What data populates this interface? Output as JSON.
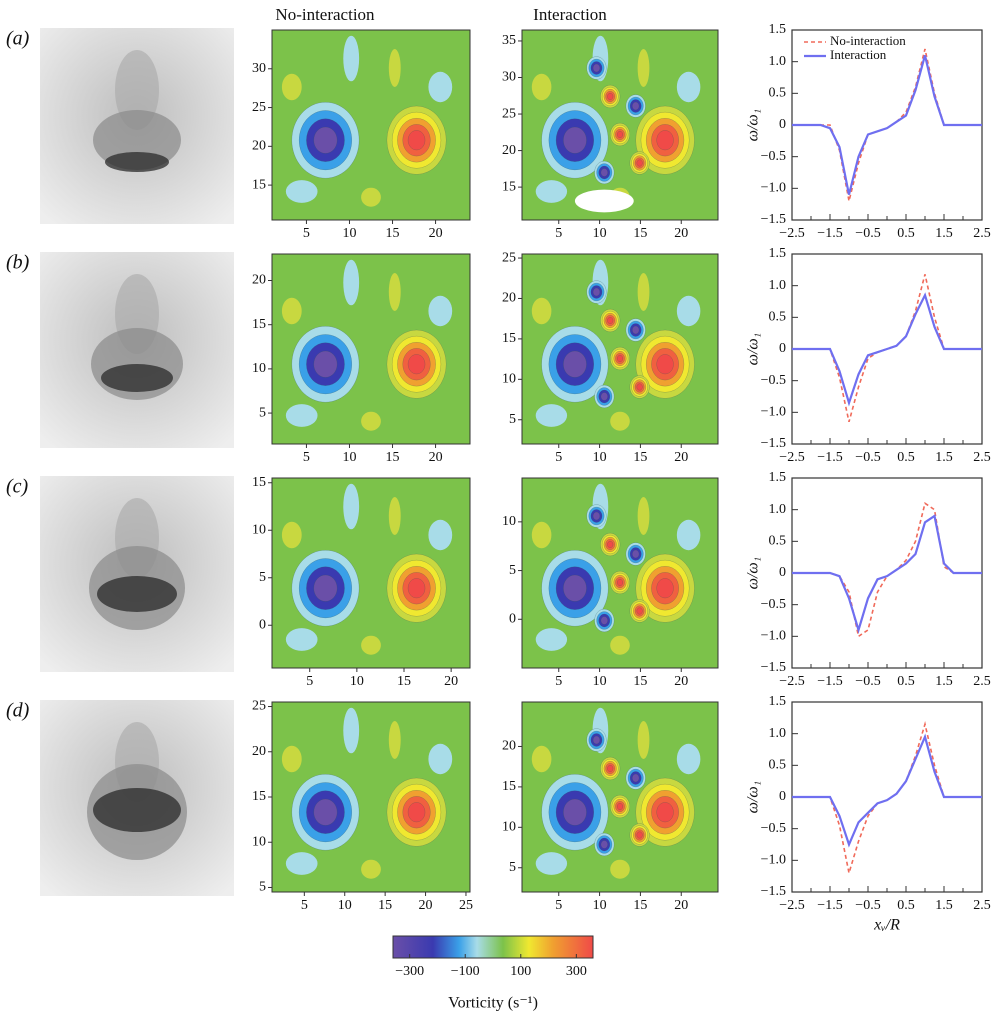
{
  "column_titles": [
    "No-interaction",
    "Interaction"
  ],
  "panel_labels": [
    "(a)",
    "(b)",
    "(c)",
    "(d)"
  ],
  "colorbar": {
    "label": "Vorticity (s⁻¹)",
    "lim": [
      -360,
      360
    ],
    "ticks": [
      {
        "value": -300,
        "label": "−300"
      },
      {
        "value": -100,
        "label": "−100"
      },
      100,
      300
    ]
  },
  "chart_data": [
    {
      "type": "contour",
      "xlim": [
        1,
        24
      ],
      "ylim": [
        10.5,
        35
      ],
      "xticks": [
        5,
        10,
        15,
        20
      ],
      "yticks": [
        15,
        20,
        25,
        30
      ]
    },
    {
      "type": "contour",
      "xlim": [
        0.5,
        24.5
      ],
      "ylim": [
        10.5,
        36.5
      ],
      "xticks": [
        5,
        10,
        15,
        20
      ],
      "yticks": [
        15,
        20,
        25,
        30,
        35
      ]
    },
    {
      "type": "line",
      "ylabel": "ω/ω₁",
      "xlim": [
        -2.5,
        2.5
      ],
      "ylim": [
        -1.5,
        1.5
      ],
      "xticks": [
        {
          "value": -2.5,
          "label": "−2.5"
        },
        {
          "value": -1.5,
          "label": "−1.5"
        },
        {
          "value": -0.5,
          "label": "−0.5"
        },
        0.5,
        1.5,
        2.5
      ],
      "yticks": [
        {
          "value": -1.5,
          "label": "−1.5"
        },
        {
          "value": -1,
          "label": "−1.0"
        },
        {
          "value": -0.5,
          "label": "−0.5"
        },
        0,
        0.5,
        {
          "value": 1,
          "label": "1.0"
        },
        1.5
      ],
      "x": [
        -2.5,
        -2.25,
        -2,
        -1.75,
        -1.5,
        -1.25,
        -1,
        -0.75,
        -0.5,
        -0.25,
        0,
        0.25,
        0.5,
        0.75,
        1,
        1.25,
        1.5,
        1.75,
        2,
        2.25,
        2.5
      ],
      "series": [
        {
          "name": "No-interaction",
          "color": "#f06a5a",
          "dashed": true,
          "values": [
            0,
            0,
            0,
            0,
            0,
            -0.4,
            -1.2,
            -0.6,
            -0.15,
            -0.1,
            -0.05,
            0.05,
            0.2,
            0.6,
            1.2,
            0.5,
            0,
            0,
            0,
            0,
            0
          ]
        },
        {
          "name": "Interaction",
          "color": "#6f6ff0",
          "dashed": false,
          "values": [
            0,
            0,
            0,
            0,
            -0.05,
            -0.35,
            -1.1,
            -0.5,
            -0.15,
            -0.1,
            -0.05,
            0.05,
            0.15,
            0.55,
            1.1,
            0.45,
            0,
            0,
            0,
            0,
            0
          ]
        }
      ]
    },
    {
      "type": "contour",
      "xlim": [
        1,
        24
      ],
      "ylim": [
        1.5,
        23
      ],
      "xticks": [
        5,
        10,
        15,
        20
      ],
      "yticks": [
        5,
        10,
        15,
        20
      ]
    },
    {
      "type": "contour",
      "xlim": [
        0.5,
        24.5
      ],
      "ylim": [
        2,
        25.5
      ],
      "xticks": [
        5,
        10,
        15,
        20
      ],
      "yticks": [
        5,
        10,
        15,
        20,
        25
      ]
    },
    {
      "type": "line",
      "ylabel": "ω/ω₁",
      "xlim": [
        -2.5,
        2.5
      ],
      "ylim": [
        -1.5,
        1.5
      ],
      "xticks": [
        {
          "value": -2.5,
          "label": "−2.5"
        },
        {
          "value": -1.5,
          "label": "−1.5"
        },
        {
          "value": -0.5,
          "label": "−0.5"
        },
        0.5,
        1.5,
        2.5
      ],
      "yticks": [
        {
          "value": -1.5,
          "label": "−1.5"
        },
        {
          "value": -1,
          "label": "−1.0"
        },
        {
          "value": -0.5,
          "label": "−0.5"
        },
        0,
        0.5,
        {
          "value": 1,
          "label": "1.0"
        },
        1.5
      ],
      "x": [
        -2.5,
        -2.25,
        -2,
        -1.75,
        -1.5,
        -1.25,
        -1,
        -0.75,
        -0.5,
        -0.25,
        0,
        0.25,
        0.5,
        0.75,
        1,
        1.25,
        1.5,
        1.75,
        2,
        2.25,
        2.5
      ],
      "series": [
        {
          "color": "#f06a5a",
          "dashed": true,
          "values": [
            0,
            0,
            0,
            0,
            0,
            -0.45,
            -1.15,
            -0.6,
            -0.15,
            -0.05,
            0,
            0.05,
            0.2,
            0.6,
            1.18,
            0.5,
            0,
            0,
            0,
            0,
            0
          ]
        },
        {
          "color": "#6f6ff0",
          "dashed": false,
          "values": [
            0,
            0,
            0,
            0,
            0,
            -0.35,
            -0.85,
            -0.4,
            -0.1,
            -0.05,
            0,
            0.05,
            0.2,
            0.55,
            0.85,
            0.35,
            0,
            0,
            0,
            0,
            0
          ]
        }
      ]
    },
    {
      "type": "contour",
      "xlim": [
        1,
        22
      ],
      "ylim": [
        -4.5,
        15.5
      ],
      "xticks": [
        5,
        10,
        15,
        20
      ],
      "yticks": [
        0,
        5,
        10,
        15
      ]
    },
    {
      "type": "contour",
      "xlim": [
        0.5,
        24.5
      ],
      "ylim": [
        -5,
        14.5
      ],
      "xticks": [
        5,
        10,
        15,
        20
      ],
      "yticks": [
        0,
        5,
        10
      ]
    },
    {
      "type": "line",
      "ylabel": "ω/ω₁",
      "xlim": [
        -2.5,
        2.5
      ],
      "ylim": [
        -1.5,
        1.5
      ],
      "xticks": [
        {
          "value": -2.5,
          "label": "−2.5"
        },
        {
          "value": -1.5,
          "label": "−1.5"
        },
        {
          "value": -0.5,
          "label": "−0.5"
        },
        0.5,
        1.5,
        2.5
      ],
      "yticks": [
        {
          "value": -1.5,
          "label": "−1.5"
        },
        {
          "value": -1,
          "label": "−1.0"
        },
        {
          "value": -0.5,
          "label": "−0.5"
        },
        0,
        0.5,
        {
          "value": 1,
          "label": "1.0"
        },
        1.5
      ],
      "x": [
        -2.5,
        -2.25,
        -2,
        -1.75,
        -1.5,
        -1.25,
        -1,
        -0.75,
        -0.5,
        -0.25,
        0,
        0.25,
        0.5,
        0.75,
        1,
        1.25,
        1.5,
        1.75,
        2,
        2.25,
        2.5
      ],
      "series": [
        {
          "color": "#f06a5a",
          "dashed": true,
          "values": [
            0,
            0,
            0,
            0,
            0,
            -0.05,
            -0.3,
            -1.0,
            -0.9,
            -0.3,
            -0.05,
            0.05,
            0.2,
            0.5,
            1.1,
            1.0,
            0.1,
            0,
            0,
            0,
            0
          ]
        },
        {
          "color": "#6f6ff0",
          "dashed": false,
          "values": [
            0,
            0,
            0,
            0,
            0,
            -0.05,
            -0.4,
            -0.9,
            -0.4,
            -0.1,
            -0.05,
            0.05,
            0.15,
            0.3,
            0.8,
            0.9,
            0.15,
            0,
            0,
            0,
            0
          ]
        }
      ]
    },
    {
      "type": "contour",
      "xlim": [
        1,
        25.5
      ],
      "ylim": [
        4.5,
        25.5
      ],
      "xticks": [
        5,
        10,
        15,
        20,
        25
      ],
      "yticks": [
        5,
        10,
        15,
        20,
        25
      ]
    },
    {
      "type": "contour",
      "xlim": [
        0.5,
        24.5
      ],
      "ylim": [
        2,
        25.5
      ],
      "xticks": [
        5,
        10,
        15,
        20
      ],
      "yticks": [
        5,
        10,
        15,
        20
      ]
    },
    {
      "type": "line",
      "ylabel": "ω/ω₁",
      "xlabel": "xᵥ/R",
      "xlim": [
        -2.5,
        2.5
      ],
      "ylim": [
        -1.5,
        1.5
      ],
      "xticks": [
        {
          "value": -2.5,
          "label": "−2.5"
        },
        {
          "value": -1.5,
          "label": "−1.5"
        },
        {
          "value": -0.5,
          "label": "−0.5"
        },
        0.5,
        1.5,
        2.5
      ],
      "yticks": [
        {
          "value": -1.5,
          "label": "−1.5"
        },
        {
          "value": -1,
          "label": "−1.0"
        },
        {
          "value": -0.5,
          "label": "−0.5"
        },
        0,
        0.5,
        {
          "value": 1,
          "label": "1.0"
        },
        1.5
      ],
      "x": [
        -2.5,
        -2.25,
        -2,
        -1.75,
        -1.5,
        -1.25,
        -1,
        -0.75,
        -0.5,
        -0.25,
        0,
        0.25,
        0.5,
        0.75,
        1,
        1.25,
        1.5,
        1.75,
        2,
        2.25,
        2.5
      ],
      "series": [
        {
          "color": "#f06a5a",
          "dashed": true,
          "values": [
            0,
            0,
            0,
            0,
            0,
            -0.45,
            -1.2,
            -0.7,
            -0.3,
            -0.1,
            -0.05,
            0.05,
            0.25,
            0.65,
            1.15,
            0.5,
            0,
            0,
            0,
            0,
            0
          ]
        },
        {
          "color": "#6f6ff0",
          "dashed": false,
          "values": [
            0,
            0,
            0,
            0,
            0,
            -0.3,
            -0.75,
            -0.4,
            -0.25,
            -0.1,
            -0.05,
            0.05,
            0.25,
            0.6,
            0.95,
            0.4,
            0,
            0,
            0,
            0,
            0
          ]
        }
      ]
    }
  ]
}
